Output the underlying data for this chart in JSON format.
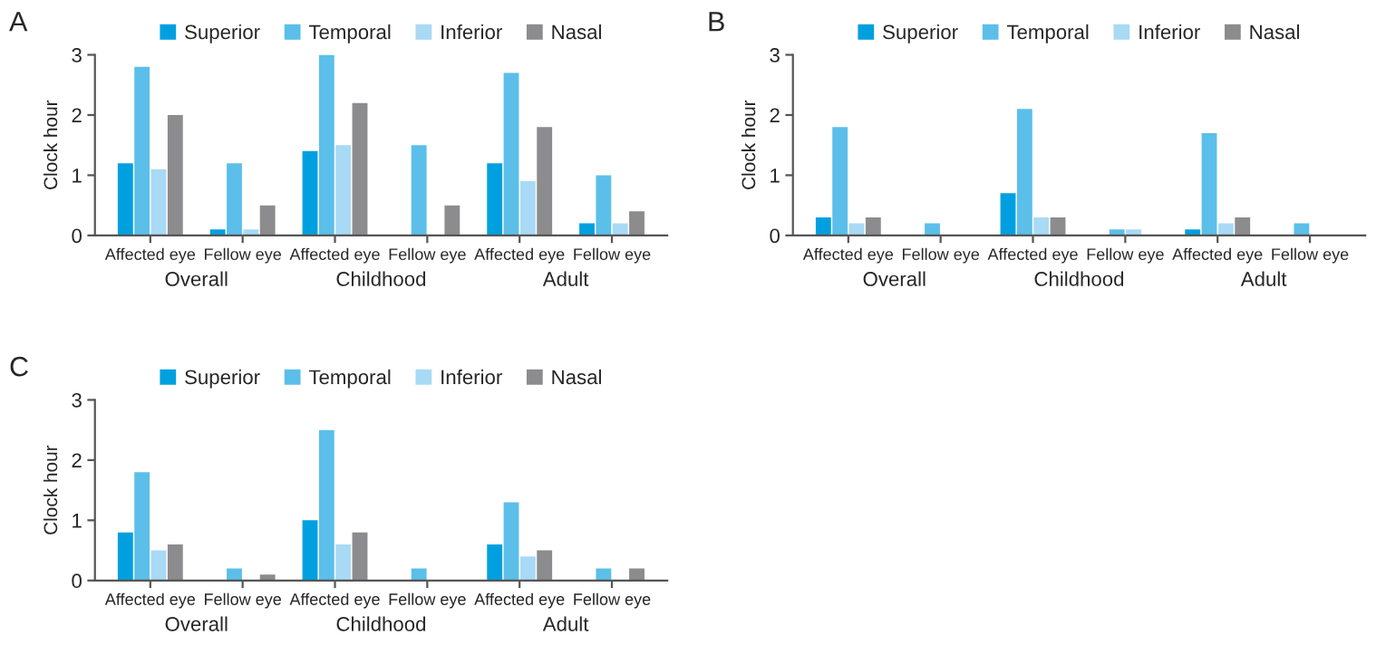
{
  "chart_data": [
    {
      "type": "bar",
      "title": "A",
      "ylabel": "Clock hour",
      "categories": [
        "Affected eye",
        "Fellow eye",
        "Affected eye",
        "Fellow eye",
        "Affected eye",
        "Fellow eye"
      ],
      "annotations": [
        "Overall",
        "Childhood",
        "Adult"
      ],
      "ylim": [
        0,
        3
      ],
      "yticks": [
        0,
        1,
        2,
        3
      ],
      "grid": false,
      "legend": "top",
      "series": [
        {
          "name": "Superior",
          "color": "#00a0e0",
          "values": [
            1.2,
            0.1,
            1.4,
            0,
            1.2,
            0.2
          ]
        },
        {
          "name": "Temporal",
          "color": "#5bbfea",
          "values": [
            2.8,
            1.2,
            3.0,
            1.5,
            2.7,
            1.0
          ]
        },
        {
          "name": "Inferior",
          "color": "#a8daf5",
          "values": [
            1.1,
            0.1,
            1.5,
            0,
            0.9,
            0.2
          ]
        },
        {
          "name": "Nasal",
          "color": "#8c8c8e",
          "values": [
            2.0,
            0.5,
            2.2,
            0.5,
            1.8,
            0.4
          ]
        }
      ]
    },
    {
      "type": "bar",
      "title": "B",
      "ylabel": "Clock hour",
      "categories": [
        "Affected eye",
        "Fellow eye",
        "Affected eye",
        "Fellow eye",
        "Affected eye",
        "Fellow eye"
      ],
      "annotations": [
        "Overall",
        "Childhood",
        "Adult"
      ],
      "ylim": [
        0,
        3
      ],
      "yticks": [
        0,
        1,
        2,
        3
      ],
      "grid": false,
      "legend": "top",
      "series": [
        {
          "name": "Superior",
          "color": "#00a0e0",
          "values": [
            0.3,
            0,
            0.7,
            0,
            0.1,
            0
          ]
        },
        {
          "name": "Temporal",
          "color": "#5bbfea",
          "values": [
            1.8,
            0.2,
            2.1,
            0.1,
            1.7,
            0.2
          ]
        },
        {
          "name": "Inferior",
          "color": "#a8daf5",
          "values": [
            0.2,
            0,
            0.3,
            0.1,
            0.2,
            0
          ]
        },
        {
          "name": "Nasal",
          "color": "#8c8c8e",
          "values": [
            0.3,
            0,
            0.3,
            0,
            0.3,
            0
          ]
        }
      ]
    },
    {
      "type": "bar",
      "title": "C",
      "ylabel": "Clock hour",
      "categories": [
        "Affected eye",
        "Fellow eye",
        "Affected eye",
        "Fellow eye",
        "Affected eye",
        "Fellow eye"
      ],
      "annotations": [
        "Overall",
        "Childhood",
        "Adult"
      ],
      "ylim": [
        0,
        3
      ],
      "yticks": [
        0,
        1,
        2,
        3
      ],
      "grid": false,
      "legend": "top",
      "series": [
        {
          "name": "Superior",
          "color": "#00a0e0",
          "values": [
            0.8,
            0,
            1.0,
            0,
            0.6,
            0
          ]
        },
        {
          "name": "Temporal",
          "color": "#5bbfea",
          "values": [
            1.8,
            0.2,
            2.5,
            0.2,
            1.3,
            0.2
          ]
        },
        {
          "name": "Inferior",
          "color": "#a8daf5",
          "values": [
            0.5,
            0,
            0.6,
            0,
            0.4,
            0
          ]
        },
        {
          "name": "Nasal",
          "color": "#8c8c8e",
          "values": [
            0.6,
            0.1,
            0.8,
            0,
            0.5,
            0.2
          ]
        }
      ]
    }
  ]
}
